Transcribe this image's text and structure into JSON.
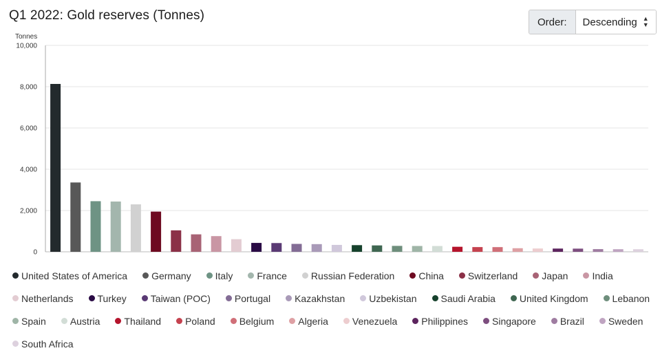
{
  "header": {
    "title": "Q1 2022: Gold reserves (Tonnes)"
  },
  "order": {
    "label": "Order:",
    "value": "Descending"
  },
  "chart_data": {
    "type": "bar",
    "title": "Q1 2022: Gold reserves (Tonnes)",
    "ylabel": "Tonnes",
    "xlabel": "",
    "ylim": [
      0,
      10000
    ],
    "yticks": [
      0,
      2000,
      4000,
      6000,
      8000,
      10000
    ],
    "ytick_labels": [
      "0",
      "2,000",
      "4,000",
      "6,000",
      "8,000",
      "10,000"
    ],
    "grid": true,
    "legend_position": "bottom",
    "categories": [
      "United States of America",
      "Germany",
      "Italy",
      "France",
      "Russian Federation",
      "China",
      "Switzerland",
      "Japan",
      "India",
      "Netherlands",
      "Turkey",
      "Taiwan (POC)",
      "Portugal",
      "Kazakhstan",
      "Uzbekistan",
      "Saudi Arabia",
      "United Kingdom",
      "Lebanon",
      "Spain",
      "Austria",
      "Thailand",
      "Poland",
      "Belgium",
      "Algeria",
      "Venezuela",
      "Philippines",
      "Singapore",
      "Brazil",
      "Sweden",
      "South Africa"
    ],
    "values": [
      8133,
      3359,
      2452,
      2436,
      2299,
      1948,
      1040,
      846,
      760,
      612,
      431,
      424,
      383,
      372,
      335,
      323,
      310,
      287,
      282,
      280,
      244,
      229,
      227,
      174,
      161,
      157,
      154,
      130,
      126,
      125
    ],
    "colors": [
      "#232a2d",
      "#585858",
      "#6e9384",
      "#a3b6ad",
      "#d1d1d1",
      "#6e0a21",
      "#8b3047",
      "#a86375",
      "#c996a4",
      "#e3ccd2",
      "#2a0b45",
      "#5a3a74",
      "#836c95",
      "#a99ab8",
      "#d0c8db",
      "#16412c",
      "#3f6651",
      "#6e8e7c",
      "#9fb5a7",
      "#d2ddd6",
      "#b5142c",
      "#c5424f",
      "#d06f78",
      "#dea0a4",
      "#edcdcf",
      "#5c245e",
      "#7d4e7f",
      "#9f7ca1",
      "#bfa4c1",
      "#ddd1de"
    ]
  }
}
